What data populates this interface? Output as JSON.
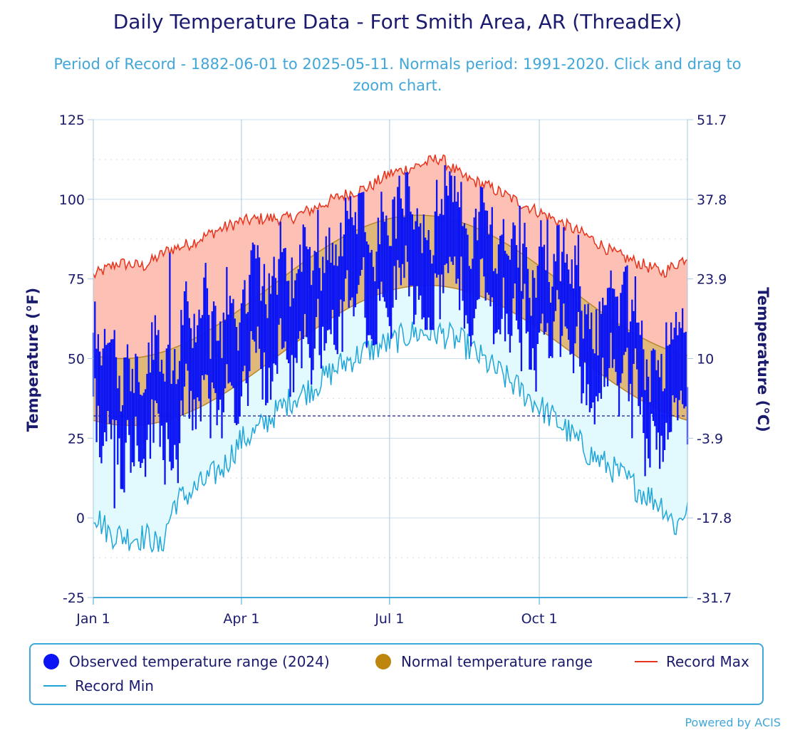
{
  "title": "Daily Temperature Data - Fort Smith Area, AR (ThreadEx)",
  "subtitle": "Period of Record - 1882-06-01 to 2025-05-11. Normals period: 1991-2020. Click and drag to zoom chart.",
  "credits": "Powered by ACIS",
  "colors": {
    "observed": "#0a14f5",
    "normal_fill": "#e0b979",
    "normal_edge": "#b8862a",
    "record_max_line": "#e8331c",
    "record_max_fill": "#fcc0b4",
    "record_min_line": "#1fa6d9",
    "record_min_fill": "#e2f9fd",
    "freezing_line": "#1a1aa0",
    "axis_text": "#1a1a6e"
  },
  "legend": {
    "observed": "Observed temperature range (2024)",
    "normal": "Normal temperature range",
    "record_max": "Record Max",
    "record_min": "Record Min"
  },
  "chart_data": {
    "type": "area",
    "title": "Daily Temperature Data - Fort Smith Area, AR (ThreadEx)",
    "xlabel": "",
    "ylabel": "Temperature (°F)",
    "ylabel_right": "Temperature (°C)",
    "ylim": [
      -25,
      125
    ],
    "xlim_days": [
      0,
      365
    ],
    "y_ticks": [
      "125",
      "100",
      "75",
      "50",
      "25",
      "0",
      "-25"
    ],
    "y_ticks_right": [
      "51.7",
      "37.8",
      "23.9",
      "10",
      "-3.9",
      "-17.8",
      "-31.7"
    ],
    "x_ticks": [
      {
        "label": "Jan 1",
        "day": 0
      },
      {
        "label": "Apr 1",
        "day": 91
      },
      {
        "label": "Jul 1",
        "day": 182
      },
      {
        "label": "Oct 1",
        "day": 274
      }
    ],
    "freezing_line_f": 32,
    "normals": {
      "max_min_f": 50,
      "max_max_f": 95,
      "max_peak_day": 200,
      "min_min_f": 29,
      "min_max_f": 73,
      "min_peak_day": 205
    },
    "record_max_anchors": [
      {
        "day": 0,
        "f": 76
      },
      {
        "day": 15,
        "f": 80
      },
      {
        "day": 31,
        "f": 79
      },
      {
        "day": 46,
        "f": 84
      },
      {
        "day": 59,
        "f": 86
      },
      {
        "day": 75,
        "f": 90
      },
      {
        "day": 90,
        "f": 93
      },
      {
        "day": 105,
        "f": 94
      },
      {
        "day": 121,
        "f": 94
      },
      {
        "day": 135,
        "f": 97
      },
      {
        "day": 152,
        "f": 101
      },
      {
        "day": 170,
        "f": 104
      },
      {
        "day": 182,
        "f": 108
      },
      {
        "day": 196,
        "f": 110
      },
      {
        "day": 213,
        "f": 113
      },
      {
        "day": 227,
        "f": 107
      },
      {
        "day": 243,
        "f": 104
      },
      {
        "day": 258,
        "f": 100
      },
      {
        "day": 274,
        "f": 96
      },
      {
        "day": 290,
        "f": 92
      },
      {
        "day": 305,
        "f": 88
      },
      {
        "day": 320,
        "f": 83
      },
      {
        "day": 335,
        "f": 80
      },
      {
        "day": 350,
        "f": 77
      },
      {
        "day": 365,
        "f": 82
      }
    ],
    "record_min_anchors": [
      {
        "day": 0,
        "f": 2
      },
      {
        "day": 10,
        "f": -5
      },
      {
        "day": 22,
        "f": -6
      },
      {
        "day": 35,
        "f": -6
      },
      {
        "day": 41,
        "f": -10
      },
      {
        "day": 50,
        "f": 5
      },
      {
        "day": 60,
        "f": 8
      },
      {
        "day": 70,
        "f": 12
      },
      {
        "day": 80,
        "f": 16
      },
      {
        "day": 90,
        "f": 24
      },
      {
        "day": 100,
        "f": 27
      },
      {
        "day": 110,
        "f": 32
      },
      {
        "day": 121,
        "f": 37
      },
      {
        "day": 135,
        "f": 41
      },
      {
        "day": 152,
        "f": 48
      },
      {
        "day": 166,
        "f": 52
      },
      {
        "day": 182,
        "f": 55
      },
      {
        "day": 196,
        "f": 58
      },
      {
        "day": 213,
        "f": 58
      },
      {
        "day": 227,
        "f": 55
      },
      {
        "day": 243,
        "f": 48
      },
      {
        "day": 258,
        "f": 42
      },
      {
        "day": 274,
        "f": 35
      },
      {
        "day": 290,
        "f": 28
      },
      {
        "day": 305,
        "f": 20
      },
      {
        "day": 320,
        "f": 15
      },
      {
        "day": 335,
        "f": 9
      },
      {
        "day": 350,
        "f": 4
      },
      {
        "day": 358,
        "f": -3
      },
      {
        "day": 365,
        "f": 4
      }
    ],
    "observed_2024": {
      "count": 366,
      "note": "daily min-max bars; key extremes read from chart",
      "extremes": [
        {
          "day": 13,
          "min_f": 3
        },
        {
          "day": 19,
          "min_f": 8
        },
        {
          "day": 47,
          "max_f": 84
        },
        {
          "day": 216,
          "max_f": 111
        },
        {
          "day": 262,
          "max_f": 101
        },
        {
          "day": 331,
          "min_f": 25
        },
        {
          "day": 355,
          "min_f": 27
        }
      ]
    }
  }
}
